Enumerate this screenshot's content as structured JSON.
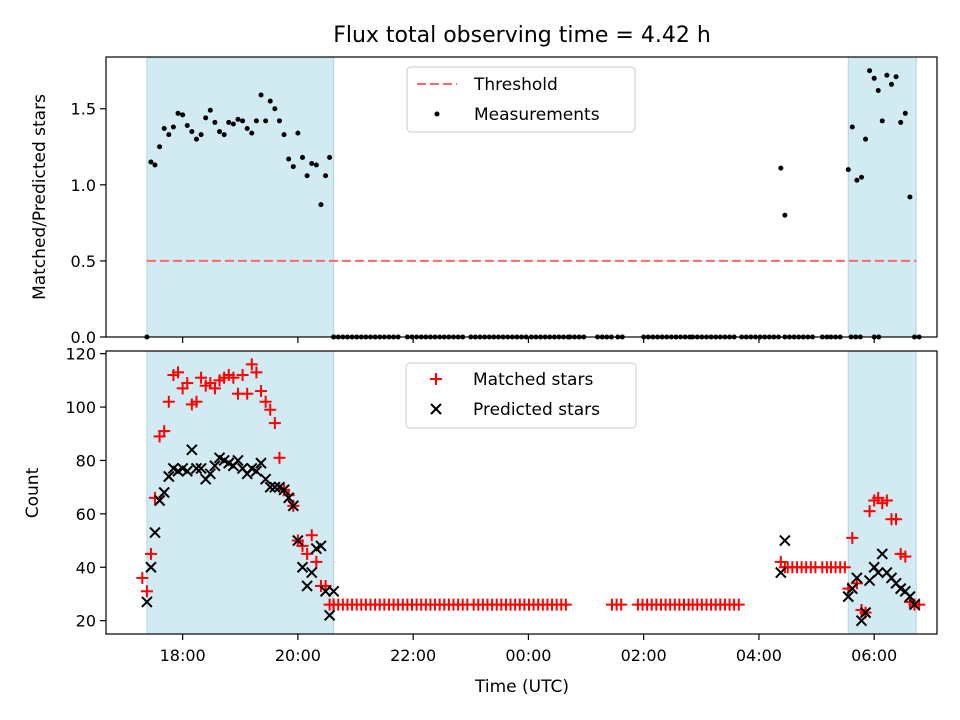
{
  "figure": {
    "title": "Flux total observing time = 4.42 h"
  },
  "chart_data": [
    {
      "type": "scatter",
      "ylabel": "Matched/Predicted stars",
      "xlabel": "",
      "xlim": [
        16.67,
        31.09
      ],
      "ylim": [
        0,
        1.84
      ],
      "yticks": [
        "0.0",
        "0.5",
        "1.0",
        "1.5"
      ],
      "ytick_values": [
        0,
        0.5,
        1.0,
        1.5
      ],
      "grid": false,
      "legend_position": "top-center",
      "shaded_intervals": [
        [
          17.38,
          20.62
        ],
        [
          29.55,
          30.73
        ]
      ],
      "shade_color": "#add8e6",
      "threshold": {
        "name": "Threshold",
        "value": 0.5,
        "x_range": [
          17.38,
          30.73
        ],
        "color": "#ff6666"
      },
      "series": [
        {
          "name": "Measurements",
          "color": "#000000",
          "marker": "dot",
          "x": [
            17.38,
            17.45,
            17.52,
            17.6,
            17.68,
            17.76,
            17.84,
            17.92,
            18.0,
            18.08,
            18.16,
            18.24,
            18.32,
            18.4,
            18.48,
            18.56,
            18.64,
            18.72,
            18.8,
            18.88,
            18.96,
            19.04,
            19.12,
            19.2,
            19.28,
            19.36,
            19.44,
            19.52,
            19.6,
            19.68,
            19.76,
            19.84,
            19.92,
            20.0,
            20.08,
            20.16,
            20.24,
            20.32,
            20.4,
            20.48,
            20.55,
            20.62,
            28.38,
            28.45,
            29.55,
            29.62,
            29.7,
            29.78,
            29.85,
            29.92,
            30.0,
            30.07,
            30.14,
            30.22,
            30.3,
            30.38,
            30.46,
            30.54,
            30.62,
            30.7,
            30.78
          ],
          "y": [
            0.0,
            1.15,
            1.13,
            1.25,
            1.37,
            1.33,
            1.38,
            1.47,
            1.46,
            1.39,
            1.35,
            1.3,
            1.33,
            1.44,
            1.49,
            1.41,
            1.35,
            1.33,
            1.41,
            1.4,
            1.43,
            1.42,
            1.37,
            1.34,
            1.42,
            1.59,
            1.42,
            1.55,
            1.5,
            1.42,
            1.33,
            1.17,
            1.12,
            1.34,
            1.18,
            1.06,
            1.14,
            1.13,
            0.87,
            1.06,
            1.18,
            0.0,
            1.11,
            0.8,
            1.1,
            1.38,
            1.03,
            1.05,
            1.3,
            1.75,
            1.7,
            1.62,
            1.42,
            1.72,
            1.66,
            1.71,
            1.41,
            1.47,
            0.92,
            0.0,
            0.0
          ],
          "zero_ranges": [
            [
              20.62,
              21.78
            ],
            [
              21.9,
              22.9
            ],
            [
              23.0,
              24.0
            ],
            [
              24.05,
              24.7
            ],
            [
              24.72,
              25.0
            ],
            [
              25.2,
              25.5
            ],
            [
              25.55,
              25.68
            ],
            [
              26.0,
              26.8
            ],
            [
              26.85,
              27.6
            ],
            [
              27.7,
              28.35
            ],
            [
              28.45,
              29.0
            ],
            [
              29.1,
              29.2
            ],
            [
              29.25,
              29.45
            ],
            [
              29.6,
              29.8
            ],
            [
              30.0,
              30.1
            ]
          ]
        }
      ]
    },
    {
      "type": "scatter",
      "ylabel": "Count",
      "xlabel": "Time (UTC)",
      "xlim": [
        16.67,
        31.09
      ],
      "ylim": [
        15,
        121
      ],
      "yticks": [
        "20",
        "40",
        "60",
        "80",
        "100",
        "120"
      ],
      "ytick_values": [
        20,
        40,
        60,
        80,
        100,
        120
      ],
      "xticks": [
        "18:00",
        "20:00",
        "22:00",
        "00:00",
        "02:00",
        "04:00",
        "06:00"
      ],
      "xtick_values": [
        18,
        20,
        22,
        24,
        26,
        28,
        30
      ],
      "grid": false,
      "legend_position": "top-center",
      "shaded_intervals": [
        [
          17.38,
          20.62
        ],
        [
          29.55,
          30.73
        ]
      ],
      "shade_color": "#add8e6",
      "series": [
        {
          "name": "Matched stars",
          "color": "#ff0000",
          "marker": "plus",
          "x": [
            17.3,
            17.38,
            17.45,
            17.52,
            17.6,
            17.68,
            17.76,
            17.84,
            17.92,
            18.0,
            18.08,
            18.16,
            18.24,
            18.32,
            18.4,
            18.48,
            18.56,
            18.64,
            18.72,
            18.8,
            18.88,
            18.96,
            19.04,
            19.12,
            19.2,
            19.28,
            19.36,
            19.44,
            19.52,
            19.6,
            19.68,
            19.76,
            19.84,
            19.92,
            20.0,
            20.08,
            20.16,
            20.24,
            20.32,
            20.4,
            20.48,
            20.55,
            20.62,
            28.38,
            28.45,
            29.55,
            29.62,
            29.7,
            29.78,
            29.85,
            29.92,
            30.0,
            30.07,
            30.14,
            30.22,
            30.3,
            30.38,
            30.46,
            30.54,
            30.62,
            30.7,
            30.78
          ],
          "y": [
            36,
            31,
            45,
            66,
            89,
            91,
            102,
            112,
            113,
            107,
            109,
            101,
            102,
            111,
            108,
            109,
            107,
            110,
            111,
            112,
            111,
            105,
            112,
            105,
            116,
            113,
            106,
            102,
            99,
            94,
            81,
            69,
            67,
            63,
            50,
            48,
            45,
            52,
            42,
            33,
            33,
            26,
            26,
            42,
            40,
            32,
            51,
            34,
            24,
            23,
            61,
            65,
            66,
            64,
            65,
            58,
            58,
            45,
            44,
            27,
            26,
            26
          ],
          "flat_ranges": [
            {
              "value": 26,
              "x": [
                20.62,
                22.95
              ]
            },
            {
              "value": 26,
              "x": [
                23.05,
                24.7
              ]
            },
            {
              "value": 26,
              "x": [
                25.45,
                25.62
              ]
            },
            {
              "value": 26,
              "x": [
                25.9,
                26.8
              ]
            },
            {
              "value": 26,
              "x": [
                26.85,
                27.65
              ]
            },
            {
              "value": 40,
              "x": [
                28.5,
                29.0
              ]
            },
            {
              "value": 40,
              "x": [
                29.1,
                29.2
              ]
            },
            {
              "value": 40,
              "x": [
                29.25,
                29.5
              ]
            }
          ]
        },
        {
          "name": "Predicted stars",
          "color": "#000000",
          "marker": "x",
          "x": [
            17.38,
            17.45,
            17.52,
            17.6,
            17.68,
            17.76,
            17.84,
            17.92,
            18.0,
            18.08,
            18.16,
            18.24,
            18.32,
            18.4,
            18.48,
            18.56,
            18.64,
            18.72,
            18.8,
            18.88,
            18.96,
            19.04,
            19.12,
            19.2,
            19.28,
            19.36,
            19.44,
            19.52,
            19.6,
            19.68,
            19.76,
            19.84,
            19.92,
            20.0,
            20.08,
            20.16,
            20.24,
            20.32,
            20.4,
            20.48,
            20.55,
            20.62,
            28.38,
            28.45,
            29.55,
            29.62,
            29.7,
            29.78,
            29.85,
            29.92,
            30.0,
            30.07,
            30.14,
            30.22,
            30.3,
            30.38,
            30.46,
            30.54,
            30.62,
            30.7
          ],
          "y": [
            27,
            40,
            53,
            65,
            68,
            74,
            77,
            76,
            77,
            76,
            84,
            77,
            77,
            73,
            75,
            78,
            81,
            80,
            79,
            78,
            80,
            77,
            75,
            77,
            76,
            79,
            73,
            70,
            70,
            70,
            69,
            66,
            63,
            50,
            40,
            33,
            38,
            47,
            48,
            31,
            22,
            31,
            38,
            50,
            29,
            32,
            36,
            20,
            23,
            35,
            40,
            38,
            45,
            38,
            36,
            34,
            32,
            31,
            29,
            26
          ]
        }
      ]
    }
  ]
}
